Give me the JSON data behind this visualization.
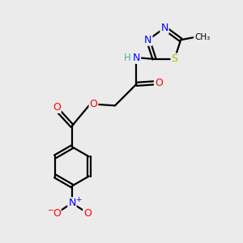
{
  "bg_color": "#ebebeb",
  "atom_colors": {
    "C": "#000000",
    "H": "#4aafaf",
    "N": "#0000ff",
    "O": "#ff0000",
    "S": "#b8b800"
  },
  "bond_color": "#000000",
  "bond_width": 1.6,
  "font_size_atoms": 9,
  "font_size_small": 8.5
}
